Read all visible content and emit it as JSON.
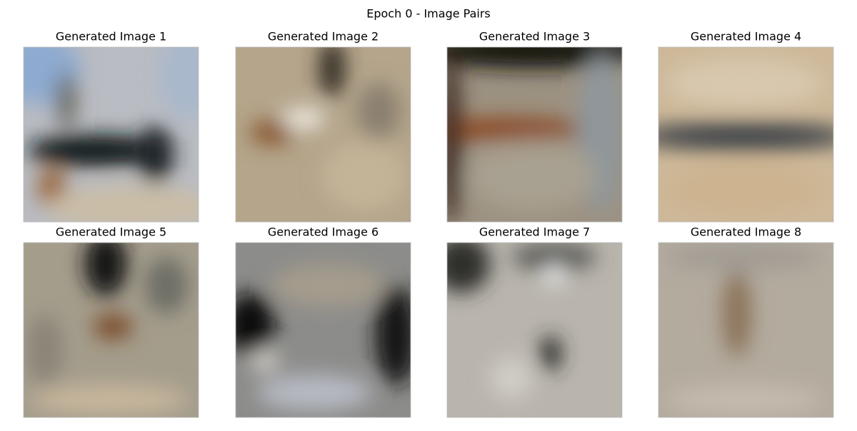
{
  "title": "Epoch 0 - Image Pairs",
  "panels": [
    {
      "title": "Generated Image 1"
    },
    {
      "title": "Generated Image 2"
    },
    {
      "title": "Generated Image 3"
    },
    {
      "title": "Generated Image 4"
    },
    {
      "title": "Generated Image 5"
    },
    {
      "title": "Generated Image 6"
    },
    {
      "title": "Generated Image 7"
    },
    {
      "title": "Generated Image 8"
    }
  ]
}
